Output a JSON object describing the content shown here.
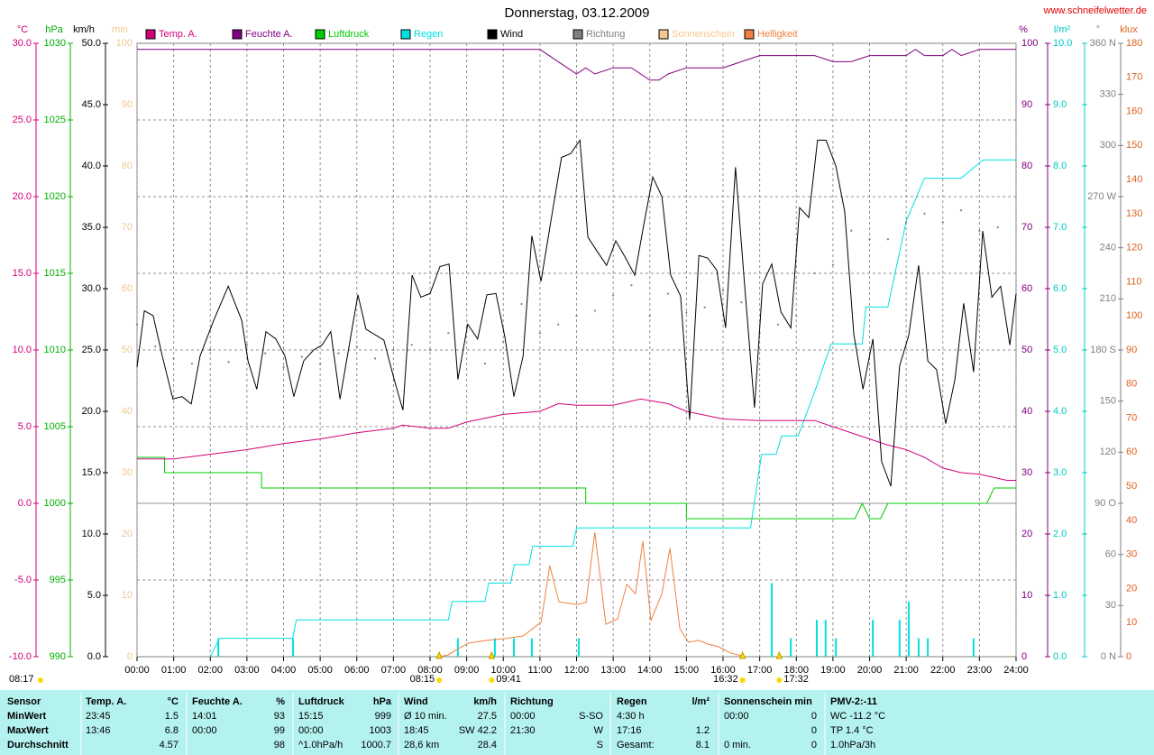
{
  "chart_data": {
    "type": "line",
    "title": "Donnerstag, 03.12.2009",
    "source": "www.schneifelwetter.de",
    "xlim": [
      0,
      24
    ],
    "xticks": [
      {
        "value": 0,
        "label": "00:00"
      },
      {
        "value": 1,
        "label": "01:00"
      },
      {
        "value": 2,
        "label": "02:00"
      },
      {
        "value": 3,
        "label": "03:00"
      },
      {
        "value": 4,
        "label": "04:00"
      },
      {
        "value": 5,
        "label": "05:00"
      },
      {
        "value": 6,
        "label": "06:00"
      },
      {
        "value": 7,
        "label": "07:00"
      },
      {
        "value": 8,
        "label": "08:00"
      },
      {
        "value": 9,
        "label": "09:00"
      },
      {
        "value": 10,
        "label": "10:00"
      },
      {
        "value": 11,
        "label": "11:00"
      },
      {
        "value": 12,
        "label": "12:00"
      },
      {
        "value": 13,
        "label": "13:00"
      },
      {
        "value": 14,
        "label": "14:00"
      },
      {
        "value": 15,
        "label": "15:00"
      },
      {
        "value": 16,
        "label": "16:00"
      },
      {
        "value": 17,
        "label": "17:00"
      },
      {
        "value": 18,
        "label": "18:00"
      },
      {
        "value": 19,
        "label": "19:00"
      },
      {
        "value": 20,
        "label": "20:00"
      },
      {
        "value": 21,
        "label": "21:00"
      },
      {
        "value": 22,
        "label": "22:00"
      },
      {
        "value": 23,
        "label": "23:00"
      },
      {
        "value": 24,
        "label": "24:00"
      }
    ],
    "axes": {
      "temp": {
        "unit": "°C",
        "color": "#d4007a",
        "grid": true,
        "ylim": [
          -10,
          30
        ],
        "yticks": [
          {
            "value": -10,
            "label": "-10.0"
          },
          {
            "value": -5,
            "label": "-5.0"
          },
          {
            "value": 0,
            "label": "0.0"
          },
          {
            "value": 5,
            "label": "5.0"
          },
          {
            "value": 10,
            "label": "10.0"
          },
          {
            "value": 15,
            "label": "15.0"
          },
          {
            "value": 20,
            "label": "20.0"
          },
          {
            "value": 25,
            "label": "25.0"
          },
          {
            "value": 30,
            "label": "30.0"
          }
        ]
      },
      "pres": {
        "unit": "hPa",
        "color": "#00b000",
        "ylim": [
          990,
          1030
        ],
        "yticks": [
          990,
          995,
          1000,
          1005,
          1010,
          1015,
          1020,
          1025,
          1030
        ]
      },
      "wind": {
        "unit": "km/h",
        "color": "#000000",
        "ylim": [
          0,
          50
        ],
        "yticks": [
          {
            "value": 0,
            "label": "0.0"
          },
          {
            "value": 5,
            "label": "5.0"
          },
          {
            "value": 10,
            "label": "10.0"
          },
          {
            "value": 15,
            "label": "15.0"
          },
          {
            "value": 20,
            "label": "20.0"
          },
          {
            "value": 25,
            "label": "25.0"
          },
          {
            "value": 30,
            "label": "30.0"
          },
          {
            "value": 35,
            "label": "35.0"
          },
          {
            "value": 40,
            "label": "40.0"
          },
          {
            "value": 45,
            "label": "45.0"
          },
          {
            "value": 50,
            "label": "50.0"
          }
        ]
      },
      "sun": {
        "unit": "min",
        "color": "#f0c890",
        "ylim": [
          0,
          100
        ],
        "yticks": [
          0,
          10,
          20,
          30,
          40,
          50,
          60,
          70,
          80,
          90,
          100
        ]
      },
      "hum": {
        "unit": "%",
        "color": "#800080",
        "ylim": [
          0,
          100
        ],
        "yticks": [
          0,
          10,
          20,
          30,
          40,
          50,
          60,
          70,
          80,
          90,
          100
        ]
      },
      "rain": {
        "unit": "l/m²",
        "color": "#00c8c8",
        "ylim": [
          0,
          10
        ],
        "yticks": [
          {
            "value": 0,
            "label": "0.0"
          },
          {
            "value": 1,
            "label": "1.0"
          },
          {
            "value": 2,
            "label": "2.0"
          },
          {
            "value": 3,
            "label": "3.0"
          },
          {
            "value": 4,
            "label": "4.0"
          },
          {
            "value": 5,
            "label": "5.0"
          },
          {
            "value": 6,
            "label": "6.0"
          },
          {
            "value": 7,
            "label": "7.0"
          },
          {
            "value": 8,
            "label": "8.0"
          },
          {
            "value": 9,
            "label": "9.0"
          },
          {
            "value": 10,
            "label": "10.0"
          }
        ]
      },
      "deg": {
        "unit": "°",
        "color": "#808080",
        "ylim": [
          0,
          360
        ],
        "yticks": [
          {
            "value": 0,
            "label": "0   N"
          },
          30,
          60,
          {
            "value": 90,
            "label": "90   O"
          },
          120,
          150,
          {
            "value": 180,
            "label": "180   S"
          },
          210,
          240,
          {
            "value": 270,
            "label": "270   W"
          },
          300,
          330,
          {
            "value": 360,
            "label": "360   N"
          }
        ]
      },
      "klux": {
        "unit": "klux",
        "color": "#e06020",
        "ylim": [
          0,
          180
        ],
        "yticks": [
          0,
          10,
          20,
          30,
          40,
          50,
          60,
          70,
          80,
          90,
          100,
          110,
          120,
          130,
          140,
          150,
          160,
          170,
          180
        ]
      }
    },
    "series": [
      {
        "name": "Temp. A.",
        "color": "#d4007a",
        "axis": "temp",
        "mark": "line",
        "x": [
          0,
          1,
          2,
          3,
          4,
          5,
          6,
          7,
          7.25,
          8,
          8.5,
          9,
          10,
          11,
          11.5,
          12,
          13,
          13.75,
          14.5,
          15,
          16,
          17,
          18,
          18.5,
          19,
          20,
          20.5,
          21,
          21.5,
          22,
          22.5,
          23,
          23.75,
          24
        ],
        "values": [
          2.9,
          2.9,
          3.2,
          3.5,
          3.9,
          4.2,
          4.6,
          4.9,
          5.1,
          4.9,
          4.9,
          5.3,
          5.8,
          6.0,
          6.5,
          6.4,
          6.4,
          6.8,
          6.5,
          6.0,
          5.5,
          5.4,
          5.4,
          5.4,
          5.0,
          4.2,
          3.8,
          3.5,
          3.0,
          2.3,
          2.0,
          1.9,
          1.5,
          1.5
        ]
      },
      {
        "name": "Feuchte A.",
        "color": "#800080",
        "axis": "hum",
        "mark": "line",
        "x": [
          0,
          11,
          11.5,
          12,
          12.25,
          12.5,
          13,
          13.5,
          14,
          14.25,
          14.5,
          15,
          16,
          16.5,
          17,
          18,
          18.5,
          19,
          19.5,
          20,
          21,
          21.25,
          21.5,
          22,
          22.25,
          22.5,
          23,
          24
        ],
        "values": [
          99,
          99,
          97,
          95,
          96,
          95,
          96,
          96,
          94,
          94,
          95,
          96,
          96,
          97,
          98,
          98,
          98,
          97,
          97,
          98,
          98,
          99,
          98,
          98,
          99,
          98,
          99,
          99
        ]
      },
      {
        "name": "Luftdruck",
        "color": "#00cc00",
        "axis": "pres",
        "mark": "line",
        "x": [
          0,
          0.75,
          0.75,
          3.4,
          3.4,
          12.25,
          12.25,
          15,
          15,
          19.6,
          19.8,
          20,
          20.3,
          20.5,
          23.2,
          23.4,
          24
        ],
        "values": [
          1003,
          1003,
          1002,
          1002,
          1001,
          1001,
          1000,
          1000,
          999,
          999,
          1000,
          999,
          999,
          1000,
          1000,
          1001,
          1001
        ]
      },
      {
        "name": "Regen",
        "color": "#00e0e0",
        "axis": "rain",
        "mark": "line",
        "x": [
          2,
          2.25,
          4.25,
          4.35,
          8.5,
          8.6,
          9.5,
          9.6,
          10.2,
          10.3,
          10.7,
          10.8,
          11.9,
          12,
          16.75,
          17.05,
          17.45,
          17.6,
          18.05,
          18.55,
          18.95,
          19.8,
          19.9,
          20.5,
          21,
          21.5,
          22.5,
          23.1,
          24
        ],
        "values": [
          0,
          0.3,
          0.3,
          0.6,
          0.6,
          0.9,
          0.9,
          1.2,
          1.2,
          1.5,
          1.5,
          1.8,
          1.8,
          2.1,
          2.1,
          3.3,
          3.3,
          3.6,
          3.6,
          4.4,
          5.1,
          5.1,
          5.7,
          5.7,
          7.1,
          7.8,
          7.8,
          8.1,
          8.1
        ]
      },
      {
        "name": "Wind",
        "color": "#000000",
        "axis": "wind",
        "mark": "line",
        "x": [
          0,
          0.2,
          0.44,
          0.69,
          0.98,
          1.23,
          1.48,
          1.72,
          2.09,
          2.49,
          2.86,
          3.03,
          3.27,
          3.52,
          3.79,
          4.04,
          4.28,
          4.55,
          4.82,
          5.05,
          5.29,
          5.54,
          6.03,
          6.25,
          6.74,
          7.02,
          7.26,
          7.51,
          7.75,
          8.0,
          8.27,
          8.52,
          8.76,
          9.03,
          9.3,
          9.55,
          9.8,
          10.04,
          10.29,
          10.54,
          10.78,
          11.03,
          11.32,
          11.59,
          11.84,
          12.09,
          12.31,
          12.55,
          12.82,
          13.07,
          13.32,
          13.59,
          13.83,
          14.08,
          14.33,
          14.57,
          14.84,
          15.09,
          15.34,
          15.58,
          15.83,
          16.07,
          16.34,
          16.59,
          16.86,
          17.08,
          17.33,
          17.58,
          17.85,
          18.09,
          18.34,
          18.58,
          18.81,
          19.08,
          19.32,
          19.57,
          19.82,
          20.09,
          20.33,
          20.58,
          20.82,
          21.07,
          21.34,
          21.59,
          21.83,
          22.08,
          22.33,
          22.57,
          22.84,
          23.09,
          23.34,
          23.58,
          23.83,
          24.0
        ],
        "values": [
          23.6,
          28.2,
          27.8,
          24.5,
          21.0,
          21.2,
          20.6,
          24.5,
          27.4,
          30.2,
          27.4,
          24.1,
          21.8,
          26.5,
          25.9,
          24.5,
          21.2,
          24.1,
          25.0,
          25.4,
          26.5,
          21.0,
          29.5,
          26.7,
          25.8,
          22.6,
          20.1,
          31.1,
          29.3,
          29.6,
          31.8,
          32.0,
          22.6,
          27.1,
          25.9,
          29.5,
          29.6,
          26.1,
          21.2,
          24.5,
          34.3,
          30.6,
          35.9,
          40.7,
          41.0,
          42.1,
          34.2,
          33.1,
          31.9,
          33.9,
          32.6,
          31.1,
          35.1,
          39.1,
          37.5,
          31.1,
          29.4,
          19.3,
          32.7,
          32.5,
          31.5,
          26.8,
          39.9,
          30.2,
          20.3,
          30.4,
          32.0,
          28.1,
          26.8,
          36.6,
          35.8,
          42.1,
          42.1,
          40.0,
          36.3,
          26.3,
          21.8,
          25.9,
          15.9,
          13.9,
          23.7,
          26.2,
          31.9,
          24.1,
          23.4,
          19.0,
          22.6,
          28.8,
          23.2,
          34.7,
          29.3,
          30.2,
          25.4,
          29.6
        ]
      },
      {
        "name": "Richtung",
        "color": "#808080",
        "axis": "deg",
        "mark": "dot",
        "x": [
          0,
          0.5,
          1,
          1.5,
          2,
          2.5,
          3,
          3.5,
          4,
          4.5,
          5,
          5.5,
          6,
          6.5,
          7,
          7.5,
          8,
          8.5,
          9,
          9.5,
          10,
          10.5,
          11,
          11.5,
          12,
          12.5,
          13,
          13.5,
          14,
          14.5,
          15,
          15.5,
          16,
          16.5,
          17,
          17.5,
          18,
          18.5,
          19,
          19.5,
          20,
          20.5,
          21,
          21.5,
          22,
          22.5,
          23,
          23.5
        ],
        "values": [
          195,
          182,
          175,
          172,
          180,
          173,
          183,
          178,
          170,
          176,
          172,
          178,
          182,
          175,
          180,
          183,
          180,
          190,
          193,
          172,
          185,
          207,
          190,
          195,
          200,
          203,
          212,
          218,
          200,
          213,
          202,
          205,
          215,
          208,
          190,
          195,
          200,
          225,
          230,
          250,
          245,
          245,
          255,
          260,
          255,
          262,
          250,
          252
        ]
      },
      {
        "name": "Sonnenschein",
        "color": "#f5c88c",
        "axis": "sun",
        "mark": "line",
        "x": [],
        "values": []
      },
      {
        "name": "Helligkeit",
        "color": "#f08040",
        "axis": "klux",
        "mark": "line",
        "x": [
          8.25,
          8.49,
          8.81,
          9.06,
          9.55,
          10.04,
          10.54,
          11.03,
          11.27,
          11.52,
          12.01,
          12.26,
          12.5,
          12.8,
          13.12,
          13.37,
          13.61,
          13.81,
          14.03,
          14.33,
          14.55,
          14.82,
          15.06,
          15.34,
          15.58,
          15.88,
          16.2,
          16.62
        ],
        "values": [
          0,
          0.5,
          2.6,
          4.0,
          4.8,
          5.3,
          6.1,
          10.1,
          26.7,
          16.1,
          15.3,
          15.9,
          36.5,
          9.5,
          11.1,
          21.2,
          18.5,
          33.9,
          10.6,
          18.5,
          31.8,
          8.2,
          4.2,
          4.8,
          3.7,
          2.9,
          1.1,
          0
        ]
      }
    ],
    "rain_bars": {
      "axis": "rain",
      "color": "#00e0e0",
      "x": [
        2.22,
        4.26,
        8.76,
        9.77,
        10.29,
        10.78,
        12.06,
        17.33,
        17.85,
        18.56,
        18.8,
        19.08,
        20.09,
        20.82,
        21.07,
        21.34,
        21.59,
        22.84
      ],
      "values": [
        0.3,
        0.3,
        0.3,
        0.3,
        0.3,
        0.3,
        0.3,
        1.2,
        0.3,
        0.6,
        0.6,
        0.3,
        0.6,
        0.6,
        0.9,
        0.3,
        0.3,
        0.3
      ]
    },
    "sunrise_label": "08:17",
    "markers": [
      "08:15",
      "09:41",
      "16:32",
      "17:32"
    ]
  },
  "table": {
    "header_label": "Sensor",
    "row_labels": [
      "MinWert",
      "MaxWert",
      "Durchschnitt"
    ],
    "groups": [
      {
        "header": [
          "Temp. A.",
          "°C"
        ],
        "rows": [
          [
            "23:45",
            "1.5"
          ],
          [
            "13:46",
            "6.8"
          ],
          [
            null,
            "4.57"
          ]
        ]
      },
      {
        "header": [
          "Feuchte A.",
          "%"
        ],
        "rows": [
          [
            "14:01",
            "93"
          ],
          [
            "00:00",
            "99"
          ],
          [
            null,
            "98"
          ]
        ]
      },
      {
        "header": [
          "Luftdruck",
          "hPa"
        ],
        "rows": [
          [
            "15:15",
            "999"
          ],
          [
            "00:00",
            "1003"
          ],
          [
            "^1.0hPa/h",
            "1000.7"
          ]
        ]
      },
      {
        "header": [
          "Wind",
          "km/h"
        ],
        "rows": [
          [
            "Ø 10 min.",
            "27.5"
          ],
          [
            "18:45",
            "SW 42.2"
          ],
          [
            "28,6 km",
            "28.4"
          ]
        ]
      },
      {
        "header": [
          "Richtung",
          null
        ],
        "rows": [
          [
            "00:00",
            "S-SO"
          ],
          [
            "21:30",
            "W"
          ],
          [
            null,
            "S"
          ]
        ]
      },
      {
        "header": [
          "Regen",
          "l/m²"
        ],
        "rows": [
          [
            "4:30 h",
            null
          ],
          [
            "17:16",
            "1.2"
          ],
          [
            "Gesamt:",
            "8.1"
          ]
        ]
      },
      {
        "header": [
          "Sonnenschein min",
          null
        ],
        "rows": [
          [
            "00:00",
            "0"
          ],
          [
            null,
            "0"
          ],
          [
            "0 min.",
            "0"
          ]
        ]
      },
      {
        "header": [
          "PMV-2:-11"
        ],
        "rows": [
          [
            "WC -11.2 °C"
          ],
          [
            "TP 1.4 °C"
          ],
          [
            "1.0hPa/3h"
          ]
        ]
      }
    ]
  }
}
